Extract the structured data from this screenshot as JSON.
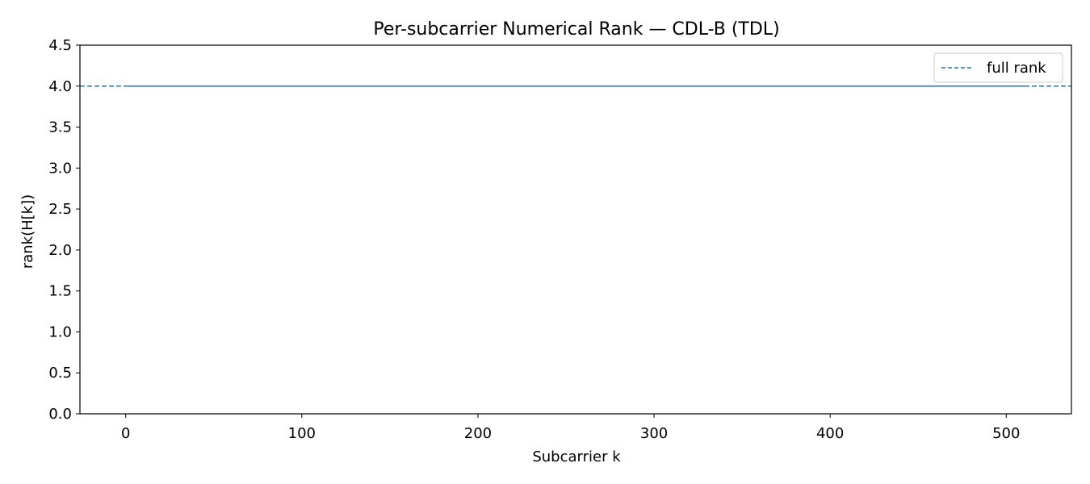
{
  "chart_data": {
    "type": "line",
    "title": "Per-subcarrier Numerical Rank — CDL-B (TDL)",
    "xlabel": "Subcarrier k",
    "ylabel": "rank(H[k])",
    "xlim": [
      -26,
      537
    ],
    "ylim": [
      0,
      4.5
    ],
    "xticks": [
      0,
      100,
      200,
      300,
      400,
      500
    ],
    "yticks": [
      0.0,
      0.5,
      1.0,
      1.5,
      2.0,
      2.5,
      3.0,
      3.5,
      4.0,
      4.5
    ],
    "ytick_labels": [
      "0.0",
      "0.5",
      "1.0",
      "1.5",
      "2.0",
      "2.5",
      "3.0",
      "3.5",
      "4.0",
      "4.5"
    ],
    "grid": false,
    "legend_position": "top-right",
    "series": [
      {
        "values_description": "",
        "x": [
          0,
          511
        ],
        "y": [
          4,
          4
        ],
        "style": "solid",
        "color": "#1f77b4"
      }
    ],
    "reference_lines": [
      {
        "name": "full rank",
        "y": 4,
        "style": "dashed",
        "color": "#1f77b4"
      }
    ]
  }
}
